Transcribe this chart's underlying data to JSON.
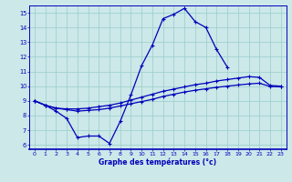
{
  "title": "Graphe des températures (°c)",
  "bg_color": "#cce8e8",
  "line_color": "#0000bb",
  "grid_color": "#99cccc",
  "xlim": [
    -0.5,
    23.5
  ],
  "ylim": [
    5.7,
    15.5
  ],
  "yticks": [
    6,
    7,
    8,
    9,
    10,
    11,
    12,
    13,
    14,
    15
  ],
  "xticks": [
    0,
    1,
    2,
    3,
    4,
    5,
    6,
    7,
    8,
    9,
    10,
    11,
    12,
    13,
    14,
    15,
    16,
    17,
    18,
    19,
    20,
    21,
    22,
    23
  ],
  "line1_y": [
    9.0,
    8.7,
    8.3,
    7.8,
    6.5,
    6.6,
    6.6,
    6.1,
    7.6,
    9.4,
    11.4,
    12.8,
    14.6,
    14.9,
    15.3,
    14.4,
    14.0,
    12.5,
    11.3,
    null,
    null,
    null,
    null,
    null
  ],
  "line2_y": [
    9.0,
    8.7,
    8.5,
    8.45,
    8.45,
    8.5,
    8.6,
    8.7,
    8.85,
    9.05,
    9.25,
    9.45,
    9.65,
    9.8,
    9.95,
    10.1,
    10.2,
    10.35,
    10.45,
    10.55,
    10.65,
    10.6,
    10.05,
    10.0
  ],
  "line3_y": [
    9.0,
    8.7,
    8.5,
    8.4,
    8.3,
    8.35,
    8.4,
    8.5,
    8.65,
    8.8,
    8.95,
    9.1,
    9.3,
    9.45,
    9.6,
    9.72,
    9.82,
    9.92,
    10.0,
    10.08,
    10.15,
    10.2,
    9.98,
    9.95
  ]
}
